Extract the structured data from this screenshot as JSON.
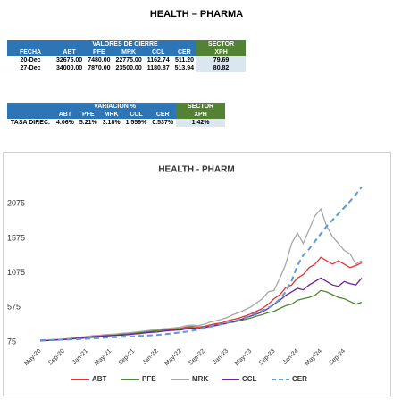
{
  "title": "HEALTH – PHARMA",
  "table1": {
    "group_header": "VALORES DE CIERRE",
    "sector_header": "SECTOR",
    "columns": [
      "FECHA",
      "ABT",
      "PFE",
      "MRK",
      "CCL",
      "CER",
      "XPH"
    ],
    "rows": [
      [
        "20-Dec",
        "32675.00",
        "7480.00",
        "22775.00",
        "1162.74",
        "511.20",
        "79.69"
      ],
      [
        "27-Dec",
        "34000.00",
        "7870.00",
        "23500.00",
        "1180.87",
        "513.94",
        "80.82"
      ]
    ]
  },
  "table2": {
    "group_header": "VARIACION %",
    "sector_header": "SECTOR",
    "columns": [
      "ABT",
      "PFE",
      "MRK",
      "CCL",
      "CER",
      "XPH"
    ],
    "rows": [
      [
        "TASA DIREC.",
        "4.06%",
        "5.21%",
        "3.18%",
        "1.559%",
        "0.537%",
        "1.42%"
      ]
    ]
  },
  "chart_data": {
    "type": "line",
    "title": "HEALTH - PHARM",
    "categories": [
      "May-20",
      null,
      null,
      null,
      "Sep-20",
      null,
      null,
      null,
      "Jan-21",
      null,
      null,
      null,
      "May-21",
      null,
      null,
      null,
      "Sep-21",
      null,
      null,
      null,
      "Jan-22",
      null,
      null,
      null,
      "May-22",
      null,
      null,
      null,
      "Sep-22",
      null,
      null,
      null,
      "Jan-23",
      null,
      null,
      null,
      "May-23",
      null,
      null,
      null,
      "Sep-23",
      null,
      null,
      null,
      "Jan-24",
      null,
      null,
      null,
      "May-24",
      null,
      null,
      null,
      "Sep-24",
      null,
      null,
      null
    ],
    "ylim": [
      75,
      2375
    ],
    "yticks": [
      75,
      575,
      1075,
      1575,
      2075
    ],
    "grid": false,
    "legend": "bottom",
    "series": [
      {
        "name": "ABT",
        "color": "#e8312f",
        "style": "solid",
        "values": [
          95,
          100,
          105,
          110,
          115,
          125,
          135,
          140,
          150,
          160,
          165,
          170,
          175,
          180,
          190,
          195,
          205,
          215,
          225,
          230,
          240,
          250,
          255,
          265,
          270,
          290,
          300,
          290,
          300,
          320,
          340,
          350,
          380,
          400,
          420,
          450,
          480,
          520,
          560,
          620,
          700,
          760,
          860,
          900,
          1000,
          1050,
          1150,
          1200,
          1300,
          1250,
          1200,
          1250,
          1200,
          1150,
          1180,
          1220
        ]
      },
      {
        "name": "PFE",
        "color": "#4e8a2f",
        "style": "solid",
        "values": [
          95,
          100,
          100,
          105,
          110,
          115,
          120,
          125,
          135,
          140,
          150,
          160,
          165,
          175,
          180,
          190,
          200,
          210,
          220,
          230,
          240,
          250,
          250,
          255,
          260,
          280,
          280,
          270,
          285,
          300,
          310,
          330,
          350,
          360,
          380,
          400,
          420,
          450,
          470,
          500,
          520,
          560,
          600,
          620,
          680,
          700,
          720,
          750,
          820,
          800,
          760,
          720,
          700,
          660,
          620,
          650
        ]
      },
      {
        "name": "MRK",
        "color": "#a6a6a6",
        "style": "solid",
        "values": [
          95,
          100,
          105,
          110,
          115,
          125,
          135,
          145,
          155,
          165,
          170,
          180,
          185,
          190,
          200,
          205,
          215,
          225,
          235,
          245,
          255,
          265,
          270,
          280,
          290,
          310,
          320,
          310,
          330,
          360,
          380,
          400,
          430,
          470,
          500,
          540,
          580,
          640,
          700,
          800,
          820,
          1000,
          1200,
          1500,
          1650,
          1500,
          1700,
          1900,
          2000,
          1750,
          1600,
          1500,
          1400,
          1350,
          1200,
          1250
        ]
      },
      {
        "name": "CCL",
        "color": "#6a1fa0",
        "style": "solid",
        "values": [
          90,
          95,
          100,
          105,
          110,
          115,
          125,
          130,
          140,
          150,
          155,
          160,
          165,
          170,
          175,
          180,
          190,
          195,
          205,
          215,
          220,
          230,
          240,
          245,
          250,
          265,
          275,
          265,
          280,
          300,
          320,
          330,
          350,
          370,
          390,
          420,
          450,
          480,
          510,
          560,
          620,
          680,
          750,
          800,
          850,
          830,
          900,
          950,
          1000,
          950,
          900,
          880,
          950,
          920,
          900,
          1000
        ]
      },
      {
        "name": "CER",
        "color": "#5b9bd5",
        "style": "dashed",
        "values": [
          100,
          102,
          104,
          106,
          108,
          111,
          114,
          117,
          121,
          126,
          131,
          135,
          139,
          144,
          149,
          153,
          157,
          162,
          166,
          170,
          176,
          183,
          193,
          203,
          213,
          224,
          238,
          256,
          276,
          293,
          312,
          332,
          353,
          374,
          395,
          425,
          460,
          495,
          530,
          570,
          615,
          700,
          800,
          960,
          1180,
          1330,
          1420,
          1530,
          1640,
          1750,
          1840,
          1930,
          2020,
          2110,
          2210,
          2320
        ]
      }
    ]
  }
}
